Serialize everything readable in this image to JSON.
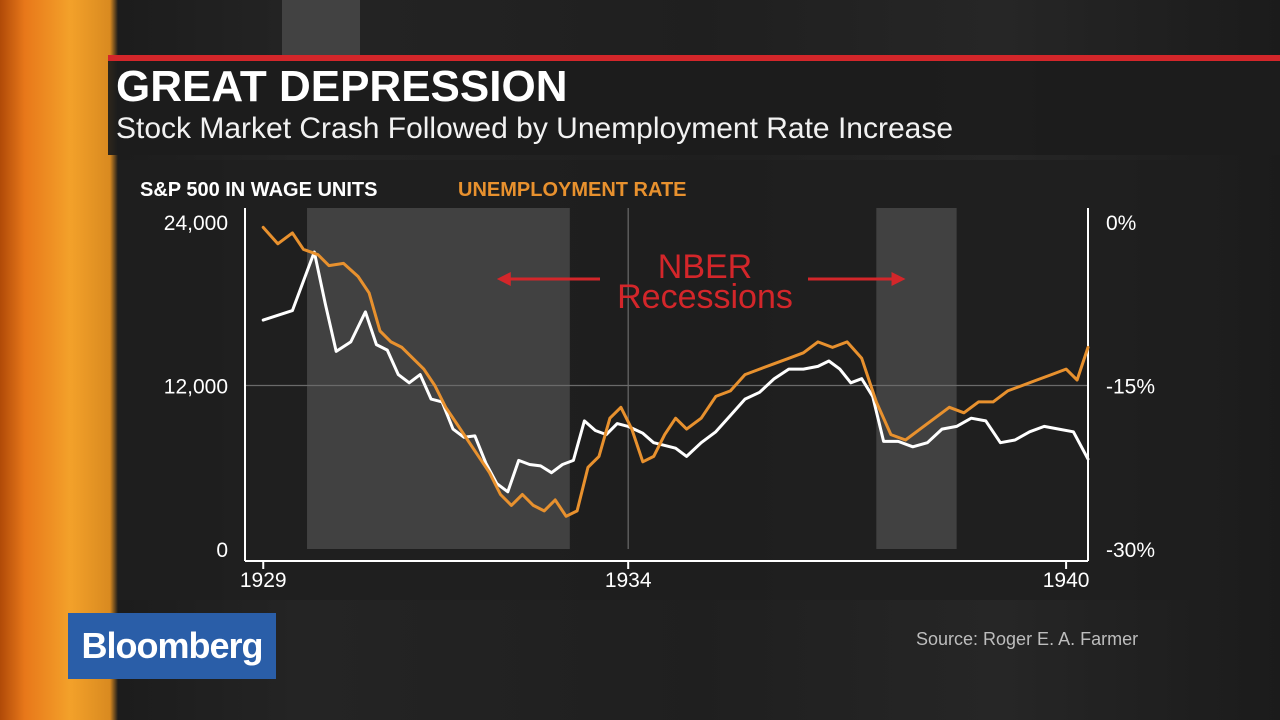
{
  "header": {
    "title": "GREAT DEPRESSION",
    "subtitle": "Stock Market Crash Followed by Unemployment Rate Increase"
  },
  "source": "Source: Roger E. A. Farmer",
  "logo": {
    "text": "Bloomberg",
    "color": "#2a5ea8"
  },
  "colors": {
    "accent_red": "#d3262a",
    "sp500_line": "#ffffff",
    "unemployment_line": "#e8912e",
    "recession_shade": "#4d4d4d",
    "annotation": "#d3262a"
  },
  "chart_data": {
    "type": "line",
    "x_range": [
      1928.75,
      1940.3
    ],
    "x_ticks": [
      {
        "value": 1929,
        "label": "1929"
      },
      {
        "value": 1934,
        "label": "1934"
      },
      {
        "value": 1940,
        "label": "1940"
      }
    ],
    "y_left": {
      "label": "S&P 500 IN WAGE UNITS",
      "range": [
        0,
        24000
      ],
      "ticks": [
        {
          "value": 24000,
          "label": "24,000"
        },
        {
          "value": 12000,
          "label": "12,000"
        },
        {
          "value": 0,
          "label": "0"
        }
      ]
    },
    "y_right": {
      "label": "UNEMPLOYMENT RATE",
      "range": [
        -30,
        0
      ],
      "ticks": [
        {
          "value": 0,
          "label": "0%"
        },
        {
          "value": -15,
          "label": "-15%"
        },
        {
          "value": -30,
          "label": "-30%"
        }
      ]
    },
    "grid": {
      "x": [
        1934
      ],
      "y_left": [
        12000
      ]
    },
    "recessions": [
      {
        "start": 1929.6,
        "end": 1933.2
      },
      {
        "start": 1937.4,
        "end": 1938.5
      }
    ],
    "annotation": {
      "lines": [
        "NBER",
        "Recessions"
      ],
      "arrow_left_to": 1932.2,
      "arrow_right_to": 1937.8
    },
    "series": [
      {
        "name": "S&P 500 IN WAGE UNITS",
        "axis": "left",
        "color": "#ffffff",
        "x": [
          1929.0,
          1929.4,
          1929.7,
          1929.85,
          1930.0,
          1930.2,
          1930.4,
          1930.55,
          1930.7,
          1930.85,
          1931.0,
          1931.15,
          1931.3,
          1931.45,
          1931.6,
          1931.75,
          1931.9,
          1932.05,
          1932.2,
          1932.35,
          1932.5,
          1932.65,
          1932.8,
          1932.95,
          1933.1,
          1933.25,
          1933.4,
          1933.55,
          1933.7,
          1933.85,
          1934.0,
          1934.2,
          1934.35,
          1934.5,
          1934.65,
          1934.8,
          1935.0,
          1935.2,
          1935.4,
          1935.6,
          1935.8,
          1936.0,
          1936.2,
          1936.4,
          1936.6,
          1936.75,
          1936.9,
          1937.05,
          1937.2,
          1937.35,
          1937.5,
          1937.7,
          1937.9,
          1938.1,
          1938.3,
          1938.5,
          1938.7,
          1938.9,
          1939.1,
          1939.3,
          1939.5,
          1939.7,
          1939.9,
          1940.1,
          1940.3
        ],
        "values": [
          16800,
          17500,
          21800,
          18000,
          14500,
          15200,
          17400,
          15000,
          14600,
          12800,
          12200,
          12800,
          11000,
          10800,
          8800,
          8200,
          8300,
          6300,
          4800,
          4200,
          6500,
          6200,
          6100,
          5600,
          6200,
          6500,
          9400,
          8700,
          8400,
          9200,
          9000,
          8500,
          7800,
          7600,
          7400,
          6800,
          7800,
          8600,
          9800,
          11000,
          11500,
          12500,
          13200,
          13200,
          13400,
          13800,
          13200,
          12200,
          12500,
          11200,
          7900,
          7900,
          7500,
          7800,
          8800,
          9000,
          9600,
          9400,
          7800,
          8000,
          8600,
          9000,
          8800,
          8600,
          6600
        ]
      },
      {
        "name": "UNEMPLOYMENT RATE",
        "axis": "right",
        "color": "#e8912e",
        "x": [
          1929.0,
          1929.2,
          1929.4,
          1929.55,
          1929.75,
          1929.9,
          1930.1,
          1930.3,
          1930.45,
          1930.6,
          1930.75,
          1930.9,
          1931.05,
          1931.2,
          1931.35,
          1931.5,
          1931.65,
          1931.8,
          1931.95,
          1932.1,
          1932.25,
          1932.4,
          1932.55,
          1932.7,
          1932.85,
          1933.0,
          1933.15,
          1933.3,
          1933.45,
          1933.6,
          1933.75,
          1933.9,
          1934.05,
          1934.2,
          1934.35,
          1934.5,
          1934.65,
          1934.8,
          1935.0,
          1935.2,
          1935.4,
          1935.6,
          1935.8,
          1936.0,
          1936.2,
          1936.4,
          1936.6,
          1936.8,
          1937.0,
          1937.2,
          1937.4,
          1937.6,
          1937.8,
          1938.0,
          1938.2,
          1938.4,
          1938.6,
          1938.8,
          1939.0,
          1939.2,
          1939.4,
          1939.6,
          1939.8,
          1940.0,
          1940.15,
          1940.3
        ],
        "values": [
          -0.5,
          -2.0,
          -1.0,
          -2.5,
          -3.0,
          -4.0,
          -3.8,
          -5.0,
          -6.5,
          -10.0,
          -11.0,
          -11.5,
          -12.5,
          -13.5,
          -15.0,
          -17.0,
          -18.5,
          -20.0,
          -21.5,
          -23.0,
          -25.0,
          -26.0,
          -25.0,
          -26.0,
          -26.5,
          -25.5,
          -27.0,
          -26.5,
          -22.5,
          -21.5,
          -18.0,
          -17.0,
          -19.0,
          -22.0,
          -21.5,
          -19.5,
          -18.0,
          -19.0,
          -18.0,
          -16.0,
          -15.5,
          -14.0,
          -13.5,
          -13.0,
          -12.5,
          -12.0,
          -11.0,
          -11.5,
          -11.0,
          -12.5,
          -16.5,
          -19.5,
          -20.0,
          -19.0,
          -18.0,
          -17.0,
          -17.5,
          -16.5,
          -16.5,
          -15.5,
          -15.0,
          -14.5,
          -14.0,
          -13.5,
          -14.5,
          -11.5
        ]
      }
    ]
  }
}
